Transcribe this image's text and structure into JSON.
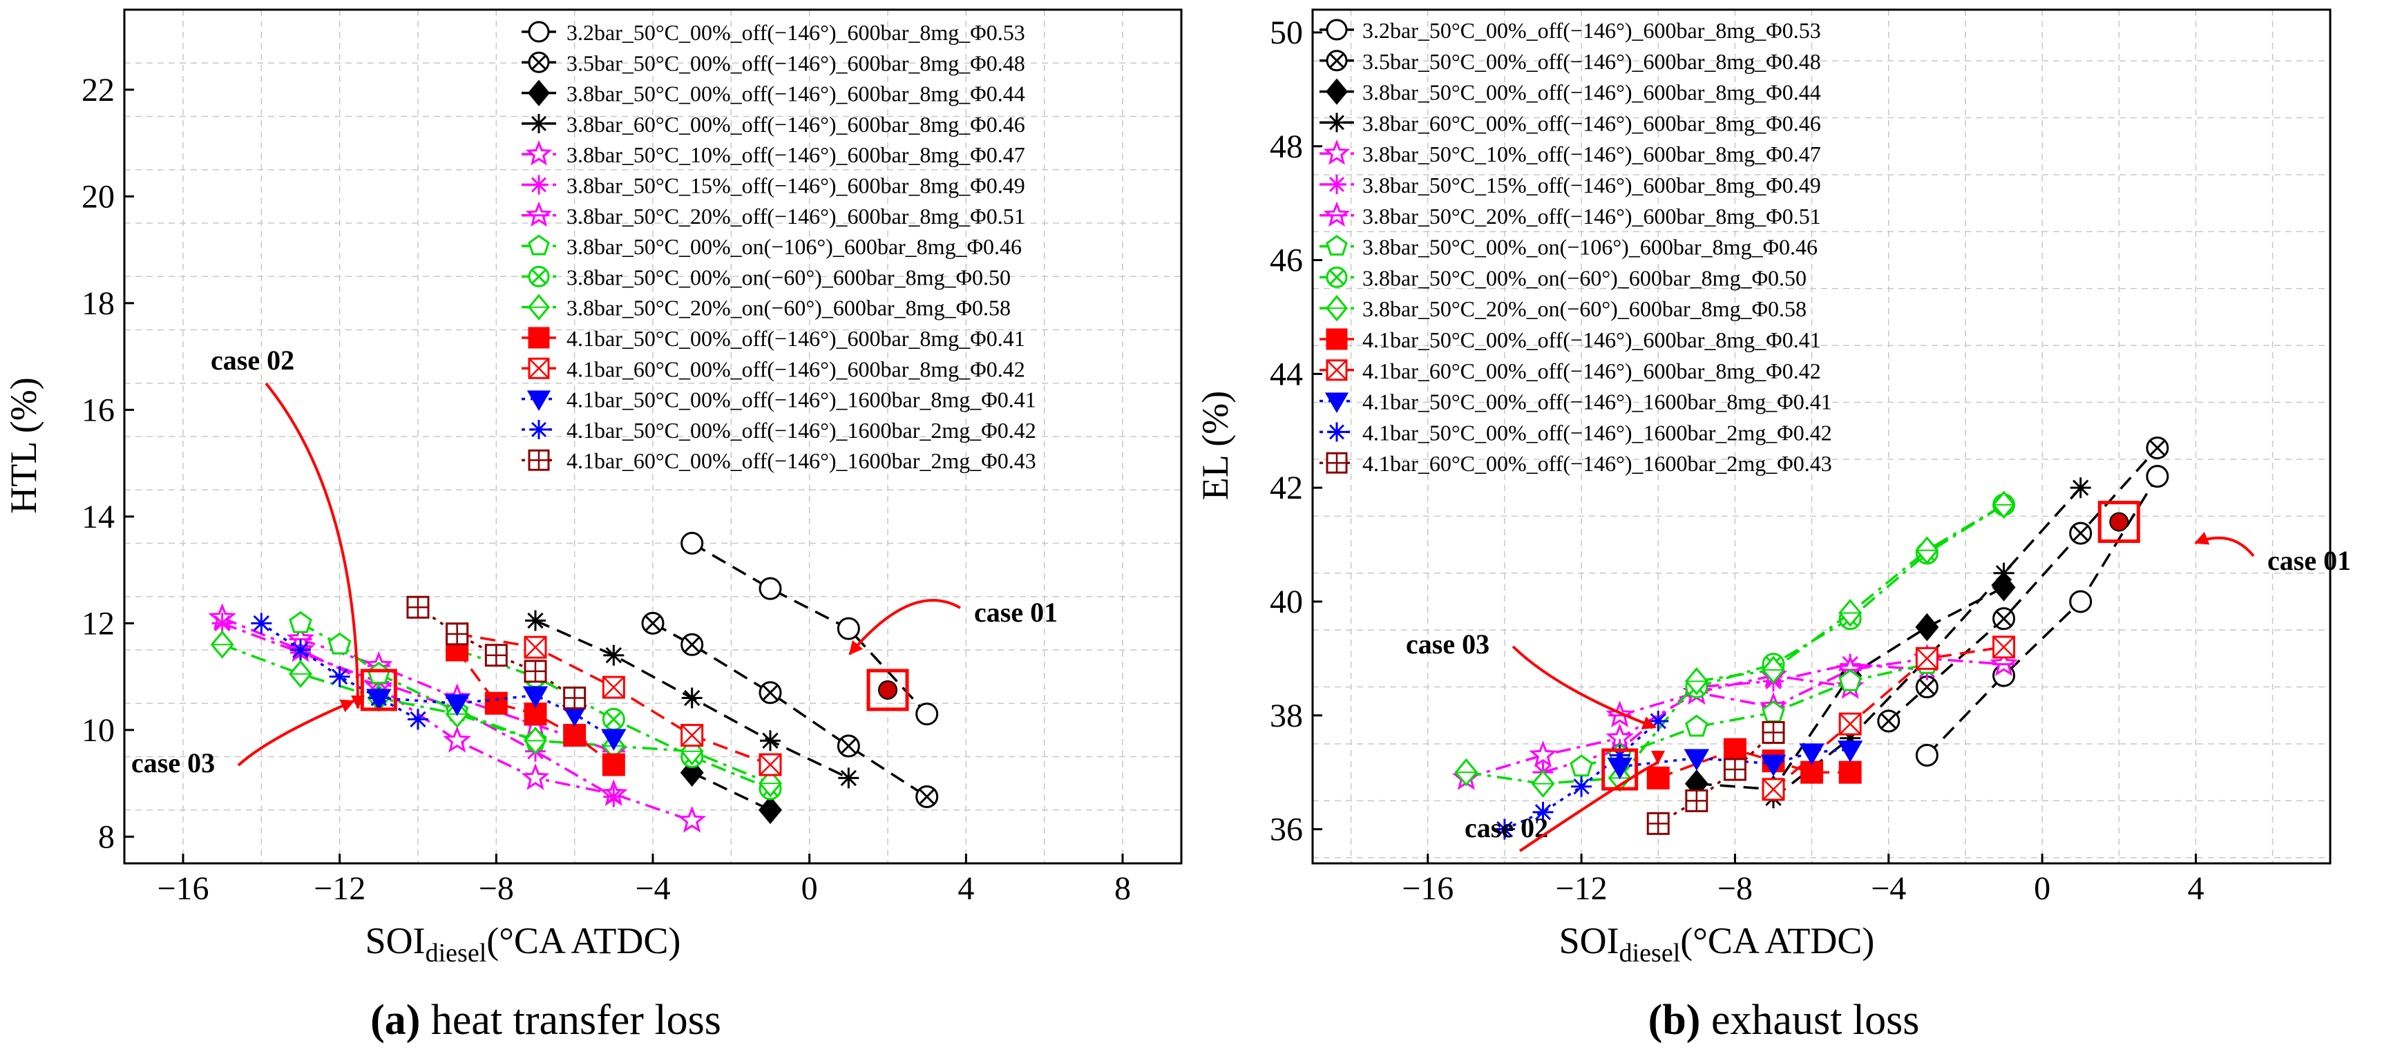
{
  "legend_labels": [
    "3.2bar_50°C_00%_off(−146°)_600bar_8mg_Φ0.53",
    "3.5bar_50°C_00%_off(−146°)_600bar_8mg_Φ0.48",
    "3.8bar_50°C_00%_off(−146°)_600bar_8mg_Φ0.44",
    "3.8bar_60°C_00%_off(−146°)_600bar_8mg_Φ0.46",
    "3.8bar_50°C_10%_off(−146°)_600bar_8mg_Φ0.47",
    "3.8bar_50°C_15%_off(−146°)_600bar_8mg_Φ0.49",
    "3.8bar_50°C_20%_off(−146°)_600bar_8mg_Φ0.51",
    "3.8bar_50°C_00%_on(−106°)_600bar_8mg_Φ0.46",
    "3.8bar_50°C_00%_on(−60°)_600bar_8mg_Φ0.50",
    "3.8bar_50°C_20%_on(−60°)_600bar_8mg_Φ0.58",
    "4.1bar_50°C_00%_off(−146°)_600bar_8mg_Φ0.41",
    "4.1bar_60°C_00%_off(−146°)_600bar_8mg_Φ0.42",
    "4.1bar_50°C_00%_off(−146°)_1600bar_8mg_Φ0.41",
    "4.1bar_50°C_00%_off(−146°)_1600bar_2mg_Φ0.42",
    "4.1bar_60°C_00%_off(−146°)_1600bar_2mg_Φ0.43"
  ],
  "series_styles": [
    {
      "color": "#000000",
      "marker": "circle-open",
      "dash": "dash"
    },
    {
      "color": "#000000",
      "marker": "circlex-open",
      "dash": "dash"
    },
    {
      "color": "#000000",
      "marker": "diamond-filled",
      "dash": "dash"
    },
    {
      "color": "#000000",
      "marker": "asterisk",
      "dash": "dash"
    },
    {
      "color": "#ff00ff",
      "marker": "star-open",
      "dash": "dashdot"
    },
    {
      "color": "#ff00ff",
      "marker": "asterisk",
      "dash": "dashdot"
    },
    {
      "color": "#ff00ff",
      "marker": "star-half",
      "dash": "dashdot"
    },
    {
      "color": "#00dd00",
      "marker": "pentagon-open",
      "dash": "dashdot"
    },
    {
      "color": "#00dd00",
      "marker": "circlex-open",
      "dash": "dashdot"
    },
    {
      "color": "#00dd00",
      "marker": "diamond-open",
      "dash": "dashdot"
    },
    {
      "color": "#ff0000",
      "marker": "square-filled",
      "dash": "dash"
    },
    {
      "color": "#ff0000",
      "marker": "squarex-open",
      "dash": "dash"
    },
    {
      "color": "#0000ff",
      "marker": "triangle-down-filled",
      "dash": "dot"
    },
    {
      "color": "#0000ff",
      "marker": "asterisk",
      "dash": "dot"
    },
    {
      "color": "#8b0000",
      "marker": "squareplus-open",
      "dash": "dot"
    }
  ],
  "chart_data": [
    {
      "type": "line",
      "caption_letter": "(a)",
      "caption_text": " heat transfer loss",
      "ylabel": "HTL (%)",
      "xlabel_main": "SOI",
      "xlabel_sub": "diesel",
      "xlabel_unit": "(°CA ATDC)",
      "xlim": [
        -17.5,
        9.5
      ],
      "ylim": [
        7.5,
        23.5
      ],
      "xticks": [
        -16,
        -12,
        -8,
        -4,
        0,
        4,
        8
      ],
      "yticks": [
        8,
        10,
        12,
        14,
        16,
        18,
        20,
        22
      ],
      "xtick_labels": [
        "−16",
        "−12",
        "−8",
        "−4",
        "0",
        "4",
        "8"
      ],
      "ytick_labels": [
        "8",
        "10",
        "12",
        "14",
        "16",
        "18",
        "20",
        "22"
      ],
      "series": [
        {
          "values": [
            [
              -3,
              13.5
            ],
            [
              -1,
              12.65
            ],
            [
              1,
              11.9
            ],
            [
              3,
              10.3
            ]
          ]
        },
        {
          "values": [
            [
              -4,
              12.0
            ],
            [
              -3,
              11.6
            ],
            [
              -1,
              10.7
            ],
            [
              1,
              9.7
            ],
            [
              3,
              8.75
            ]
          ]
        },
        {
          "values": [
            [
              -3,
              9.2
            ],
            [
              -1,
              8.5
            ]
          ]
        },
        {
          "values": [
            [
              -7,
              12.05
            ],
            [
              -5,
              11.4
            ],
            [
              -3,
              10.6
            ],
            [
              -1,
              9.8
            ],
            [
              1,
              9.1
            ]
          ]
        },
        {
          "values": [
            [
              -15,
              12.1
            ],
            [
              -13,
              11.5
            ],
            [
              -11,
              10.8
            ],
            [
              -9,
              9.8
            ],
            [
              -7,
              9.1
            ],
            [
              -5,
              8.8
            ],
            [
              -3,
              8.3
            ]
          ]
        },
        {
          "values": [
            [
              -15,
              12.0
            ],
            [
              -13,
              11.45
            ],
            [
              -11,
              10.9
            ],
            [
              -9,
              10.4
            ],
            [
              -7,
              9.6
            ],
            [
              -5,
              8.75
            ]
          ]
        },
        {
          "values": [
            [
              -13,
              11.7
            ],
            [
              -11,
              11.2
            ],
            [
              -9,
              10.6
            ],
            [
              -7,
              10.1
            ],
            [
              -5,
              9.6
            ]
          ]
        },
        {
          "values": [
            [
              -13,
              12.0
            ],
            [
              -12,
              11.6
            ],
            [
              -11,
              11.05
            ],
            [
              -9,
              10.35
            ],
            [
              -7,
              9.8
            ]
          ]
        },
        {
          "values": [
            [
              -9,
              11.5
            ],
            [
              -7,
              11.0
            ],
            [
              -5,
              10.2
            ],
            [
              -3,
              9.5
            ],
            [
              -1,
              8.9
            ]
          ]
        },
        {
          "values": [
            [
              -15,
              11.6
            ],
            [
              -13,
              11.05
            ],
            [
              -11,
              10.6
            ],
            [
              -9,
              10.3
            ],
            [
              -7,
              9.8
            ],
            [
              -5,
              9.7
            ],
            [
              -3,
              9.6
            ],
            [
              -1,
              9.0
            ]
          ]
        },
        {
          "values": [
            [
              -9,
              11.5
            ],
            [
              -8,
              10.5
            ],
            [
              -7,
              10.3
            ],
            [
              -6,
              9.9
            ],
            [
              -5,
              9.35
            ]
          ]
        },
        {
          "values": [
            [
              -9,
              11.8
            ],
            [
              -7,
              11.55
            ],
            [
              -5,
              10.8
            ],
            [
              -3,
              9.9
            ],
            [
              -1,
              9.35
            ]
          ]
        },
        {
          "values": [
            [
              -11,
              10.6
            ],
            [
              -9,
              10.5
            ],
            [
              -7,
              10.65
            ],
            [
              -6,
              10.3
            ],
            [
              -5,
              9.85
            ]
          ]
        },
        {
          "values": [
            [
              -14,
              12.0
            ],
            [
              -13,
              11.5
            ],
            [
              -12,
              11.0
            ],
            [
              -11,
              10.6
            ],
            [
              -10,
              10.2
            ]
          ]
        },
        {
          "values": [
            [
              -10,
              12.3
            ],
            [
              -9,
              11.8
            ],
            [
              -8,
              11.4
            ],
            [
              -7,
              11.1
            ],
            [
              -6,
              10.6
            ]
          ]
        }
      ],
      "highlight": {
        "x": 2,
        "y": 10.75
      },
      "annotations": [
        {
          "text": "case 01"
        },
        {
          "text": "case 02"
        },
        {
          "text": "case 03"
        }
      ]
    },
    {
      "type": "line",
      "caption_letter": "(b)",
      "caption_text": " exhaust loss",
      "ylabel": "EL (%)",
      "xlabel_main": "SOI",
      "xlabel_sub": "diesel",
      "xlabel_unit": "(°CA ATDC)",
      "xlim": [
        -19.0,
        7.5
      ],
      "ylim": [
        35.4,
        50.4
      ],
      "xticks": [
        -16,
        -12,
        -8,
        -4,
        0,
        4
      ],
      "yticks": [
        36,
        38,
        40,
        42,
        44,
        46,
        48,
        50
      ],
      "xtick_labels": [
        "−16",
        "−12",
        "−8",
        "−4",
        "0",
        "4"
      ],
      "ytick_labels": [
        "36",
        "38",
        "40",
        "42",
        "44",
        "46",
        "48",
        "50"
      ],
      "series": [
        {
          "values": [
            [
              -3,
              37.3
            ],
            [
              -1,
              38.7
            ],
            [
              1,
              40.0
            ],
            [
              3,
              42.2
            ]
          ]
        },
        {
          "values": [
            [
              -4,
              37.9
            ],
            [
              -3,
              38.5
            ],
            [
              -1,
              39.7
            ],
            [
              1,
              41.2
            ],
            [
              3,
              42.7
            ]
          ]
        },
        {
          "values": [
            [
              -9,
              36.8
            ],
            [
              -7,
              36.7
            ],
            [
              -5,
              38.7
            ],
            [
              -3,
              39.55
            ],
            [
              -1,
              40.25
            ]
          ]
        },
        {
          "values": [
            [
              -7,
              36.55
            ],
            [
              -5,
              37.6
            ],
            [
              -3,
              39.0
            ],
            [
              -1,
              40.5
            ],
            [
              1,
              42.0
            ]
          ]
        },
        {
          "values": [
            [
              -15,
              36.9
            ],
            [
              -13,
              37.3
            ],
            [
              -11,
              37.6
            ],
            [
              -9,
              38.4
            ],
            [
              -7,
              38.7
            ],
            [
              -5,
              38.5
            ]
          ]
        },
        {
          "values": [
            [
              -13,
              37.0
            ],
            [
              -11,
              37.4
            ],
            [
              -9,
              38.5
            ],
            [
              -7,
              38.6
            ],
            [
              -5,
              38.9
            ],
            [
              -3,
              38.8
            ]
          ]
        },
        {
          "values": [
            [
              -11,
              38.0
            ],
            [
              -9,
              38.4
            ],
            [
              -7,
              38.15
            ],
            [
              -5,
              38.8
            ],
            [
              -3,
              39.0
            ],
            [
              -1,
              38.9
            ]
          ]
        },
        {
          "values": [
            [
              -12,
              37.1
            ],
            [
              -11,
              37.3
            ],
            [
              -9,
              37.8
            ],
            [
              -7,
              38.05
            ],
            [
              -5,
              38.6
            ],
            [
              -3,
              38.9
            ]
          ]
        },
        {
          "values": [
            [
              -9,
              38.5
            ],
            [
              -7,
              38.9
            ],
            [
              -5,
              39.7
            ],
            [
              -3,
              40.85
            ],
            [
              -1,
              41.7
            ]
          ]
        },
        {
          "values": [
            [
              -15,
              37.0
            ],
            [
              -13,
              36.8
            ],
            [
              -11,
              36.9
            ],
            [
              -9,
              38.6
            ],
            [
              -7,
              38.8
            ],
            [
              -5,
              39.8
            ],
            [
              -3,
              40.9
            ],
            [
              -1,
              41.7
            ]
          ]
        },
        {
          "values": [
            [
              -10,
              36.9
            ],
            [
              -8,
              37.4
            ],
            [
              -7,
              37.2
            ],
            [
              -6,
              37.0
            ],
            [
              -5,
              37.0
            ]
          ]
        },
        {
          "values": [
            [
              -7,
              36.7
            ],
            [
              -5,
              37.85
            ],
            [
              -3,
              39.0
            ],
            [
              -1,
              39.2
            ]
          ]
        },
        {
          "values": [
            [
              -11,
              37.1
            ],
            [
              -9,
              37.25
            ],
            [
              -7,
              37.15
            ],
            [
              -6,
              37.35
            ],
            [
              -5,
              37.4
            ]
          ]
        },
        {
          "values": [
            [
              -14,
              36.0
            ],
            [
              -13,
              36.3
            ],
            [
              -12,
              36.75
            ],
            [
              -11,
              37.3
            ],
            [
              -10,
              37.9
            ]
          ]
        },
        {
          "values": [
            [
              -10,
              36.1
            ],
            [
              -9,
              36.5
            ],
            [
              -8,
              37.05
            ],
            [
              -7,
              37.7
            ]
          ]
        }
      ],
      "highlight": {
        "x": 2,
        "y": 41.4
      },
      "annotations": [
        {
          "text": "case 01"
        },
        {
          "text": "case 02"
        },
        {
          "text": "case 03"
        }
      ]
    }
  ]
}
